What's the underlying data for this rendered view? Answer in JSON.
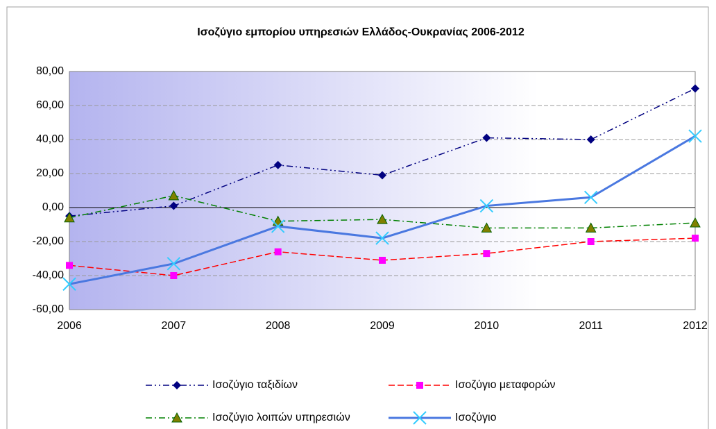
{
  "chart_data": {
    "type": "line",
    "title": "Ισοζύγιο εμπορίου υπηρεσιών Ελλάδος-Ουκρανίας 2006-2012",
    "categories": [
      "2006",
      "2007",
      "2008",
      "2009",
      "2010",
      "2011",
      "2012"
    ],
    "series": [
      {
        "name": "Ισοζύγιο ταξιδίων",
        "color": "#000080",
        "marker_color": "#000080",
        "marker": "diamond",
        "line_style": "dash-dot-dot",
        "values": [
          -5,
          1,
          25,
          19,
          41,
          40,
          70
        ]
      },
      {
        "name": "Ισοζύγιο μεταφορών",
        "color": "#ff0000",
        "marker_color": "#ff00ff",
        "marker": "square",
        "line_style": "dash",
        "values": [
          -34,
          -40,
          -26,
          -31,
          -27,
          -20,
          -18
        ]
      },
      {
        "name": "Ισοζύγιο λοιπών υπηρεσιών",
        "color": "#008000",
        "marker_color": "#808000",
        "marker": "triangle",
        "line_style": "dash-dot",
        "values": [
          -6,
          7,
          -8,
          -7,
          -12,
          -12,
          -9
        ]
      },
      {
        "name": "Ισοζύγιο",
        "color": "#4a78e0",
        "marker_color": "#33ccff",
        "marker": "x",
        "line_style": "solid",
        "values": [
          -45,
          -33,
          -11,
          -18,
          1,
          6,
          42
        ]
      }
    ],
    "ylim": [
      -60,
      80
    ],
    "yticks": [
      {
        "value": -60,
        "label": "-60,00"
      },
      {
        "value": -40,
        "label": "-40,00"
      },
      {
        "value": -20,
        "label": "-20,00"
      },
      {
        "value": 0,
        "label": "0,00"
      },
      {
        "value": 20,
        "label": "20,00"
      },
      {
        "value": 40,
        "label": "40,00"
      },
      {
        "value": 60,
        "label": "60,00"
      },
      {
        "value": 80,
        "label": "80,00"
      }
    ],
    "grid": true,
    "legend": "bottom"
  }
}
